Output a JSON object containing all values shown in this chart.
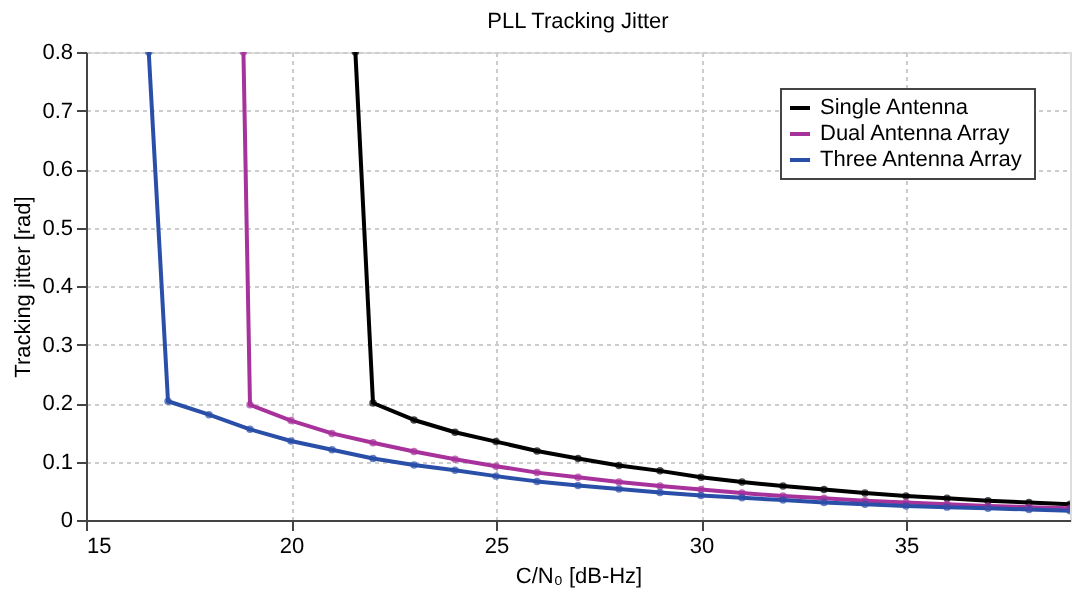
{
  "chart_data": {
    "type": "line",
    "title": "PLL Tracking Jitter",
    "xlabel": "C/N₀ [dB-Hz]",
    "ylabel": "Tracking jitter [rad]",
    "xlim": [
      15,
      39
    ],
    "ylim": [
      0,
      0.8
    ],
    "xticks": [
      15,
      20,
      25,
      30,
      35
    ],
    "yticks": [
      0,
      0.1,
      0.2,
      0.3,
      0.4,
      0.5,
      0.6,
      0.7,
      0.8
    ],
    "grid": true,
    "legend": "top right",
    "marker": "circle",
    "line_style": "solid",
    "series": [
      {
        "name": "Single Antenna",
        "color": "#000000",
        "x": [
          21.57,
          22,
          23,
          24,
          25,
          26,
          27,
          28,
          29,
          30,
          31,
          32,
          33,
          34,
          35,
          36,
          37,
          38,
          39
        ],
        "values": [
          0.8,
          0.2,
          0.171,
          0.15,
          0.134,
          0.118,
          0.105,
          0.093,
          0.084,
          0.073,
          0.065,
          0.058,
          0.052,
          0.046,
          0.041,
          0.037,
          0.033,
          0.03,
          0.027
        ]
      },
      {
        "name": "Dual Antenna Array",
        "color": "#a8329c",
        "x": [
          18.84,
          19,
          20,
          21,
          22,
          23,
          24,
          25,
          26,
          27,
          28,
          29,
          30,
          31,
          32,
          33,
          34,
          35,
          36,
          37,
          38,
          39
        ],
        "values": [
          0.8,
          0.197,
          0.17,
          0.148,
          0.132,
          0.117,
          0.104,
          0.092,
          0.081,
          0.073,
          0.065,
          0.058,
          0.052,
          0.046,
          0.041,
          0.037,
          0.033,
          0.03,
          0.027,
          0.024,
          0.022,
          0.02
        ]
      },
      {
        "name": "Three Antenna Array",
        "color": "#2a4fa8",
        "x": [
          16.53,
          17,
          18,
          19,
          20,
          21,
          22,
          23,
          24,
          25,
          26,
          27,
          28,
          29,
          30,
          31,
          32,
          33,
          34,
          35,
          36,
          37,
          38,
          39
        ],
        "values": [
          0.8,
          0.203,
          0.18,
          0.155,
          0.135,
          0.12,
          0.105,
          0.094,
          0.085,
          0.075,
          0.066,
          0.059,
          0.053,
          0.047,
          0.042,
          0.038,
          0.034,
          0.03,
          0.027,
          0.024,
          0.022,
          0.02,
          0.018,
          0.016
        ]
      }
    ]
  }
}
